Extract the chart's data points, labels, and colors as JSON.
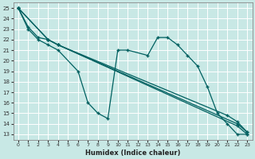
{
  "xlabel": "Humidex (Indice chaleur)",
  "xlim": [
    -0.5,
    23.5
  ],
  "ylim": [
    12.5,
    25.5
  ],
  "yticks": [
    13,
    14,
    15,
    16,
    17,
    18,
    19,
    20,
    21,
    22,
    23,
    24,
    25
  ],
  "xticks": [
    0,
    1,
    2,
    3,
    4,
    5,
    6,
    7,
    8,
    9,
    10,
    11,
    12,
    13,
    14,
    15,
    16,
    17,
    18,
    19,
    20,
    21,
    22,
    23
  ],
  "bg_color": "#c8e8e5",
  "grid_color": "#ffffff",
  "line_color": "#006060",
  "wavy_line_x": [
    0,
    1,
    2,
    3,
    4,
    6,
    7,
    8,
    9,
    10,
    11,
    13,
    14,
    15,
    16,
    17,
    18,
    19,
    20,
    21,
    22,
    23
  ],
  "wavy_line_y": [
    25,
    23,
    22,
    21.5,
    21,
    19,
    16,
    15,
    14.5,
    21,
    21,
    20.5,
    22.2,
    22.2,
    21.5,
    20.5,
    19.5,
    17.5,
    15,
    14,
    13,
    13
  ],
  "diag_lines": [
    {
      "x": [
        0,
        1,
        2,
        3,
        4,
        22,
        23
      ],
      "y": [
        25,
        23.2,
        22.2,
        22,
        21.5,
        14.0,
        13.2
      ]
    },
    {
      "x": [
        0,
        3,
        4,
        22,
        23
      ],
      "y": [
        25,
        22.0,
        21.5,
        13.8,
        13.0
      ]
    },
    {
      "x": [
        0,
        3,
        4,
        21,
        22,
        23
      ],
      "y": [
        25,
        22.0,
        21.5,
        14.8,
        14.2,
        13.2
      ]
    }
  ]
}
